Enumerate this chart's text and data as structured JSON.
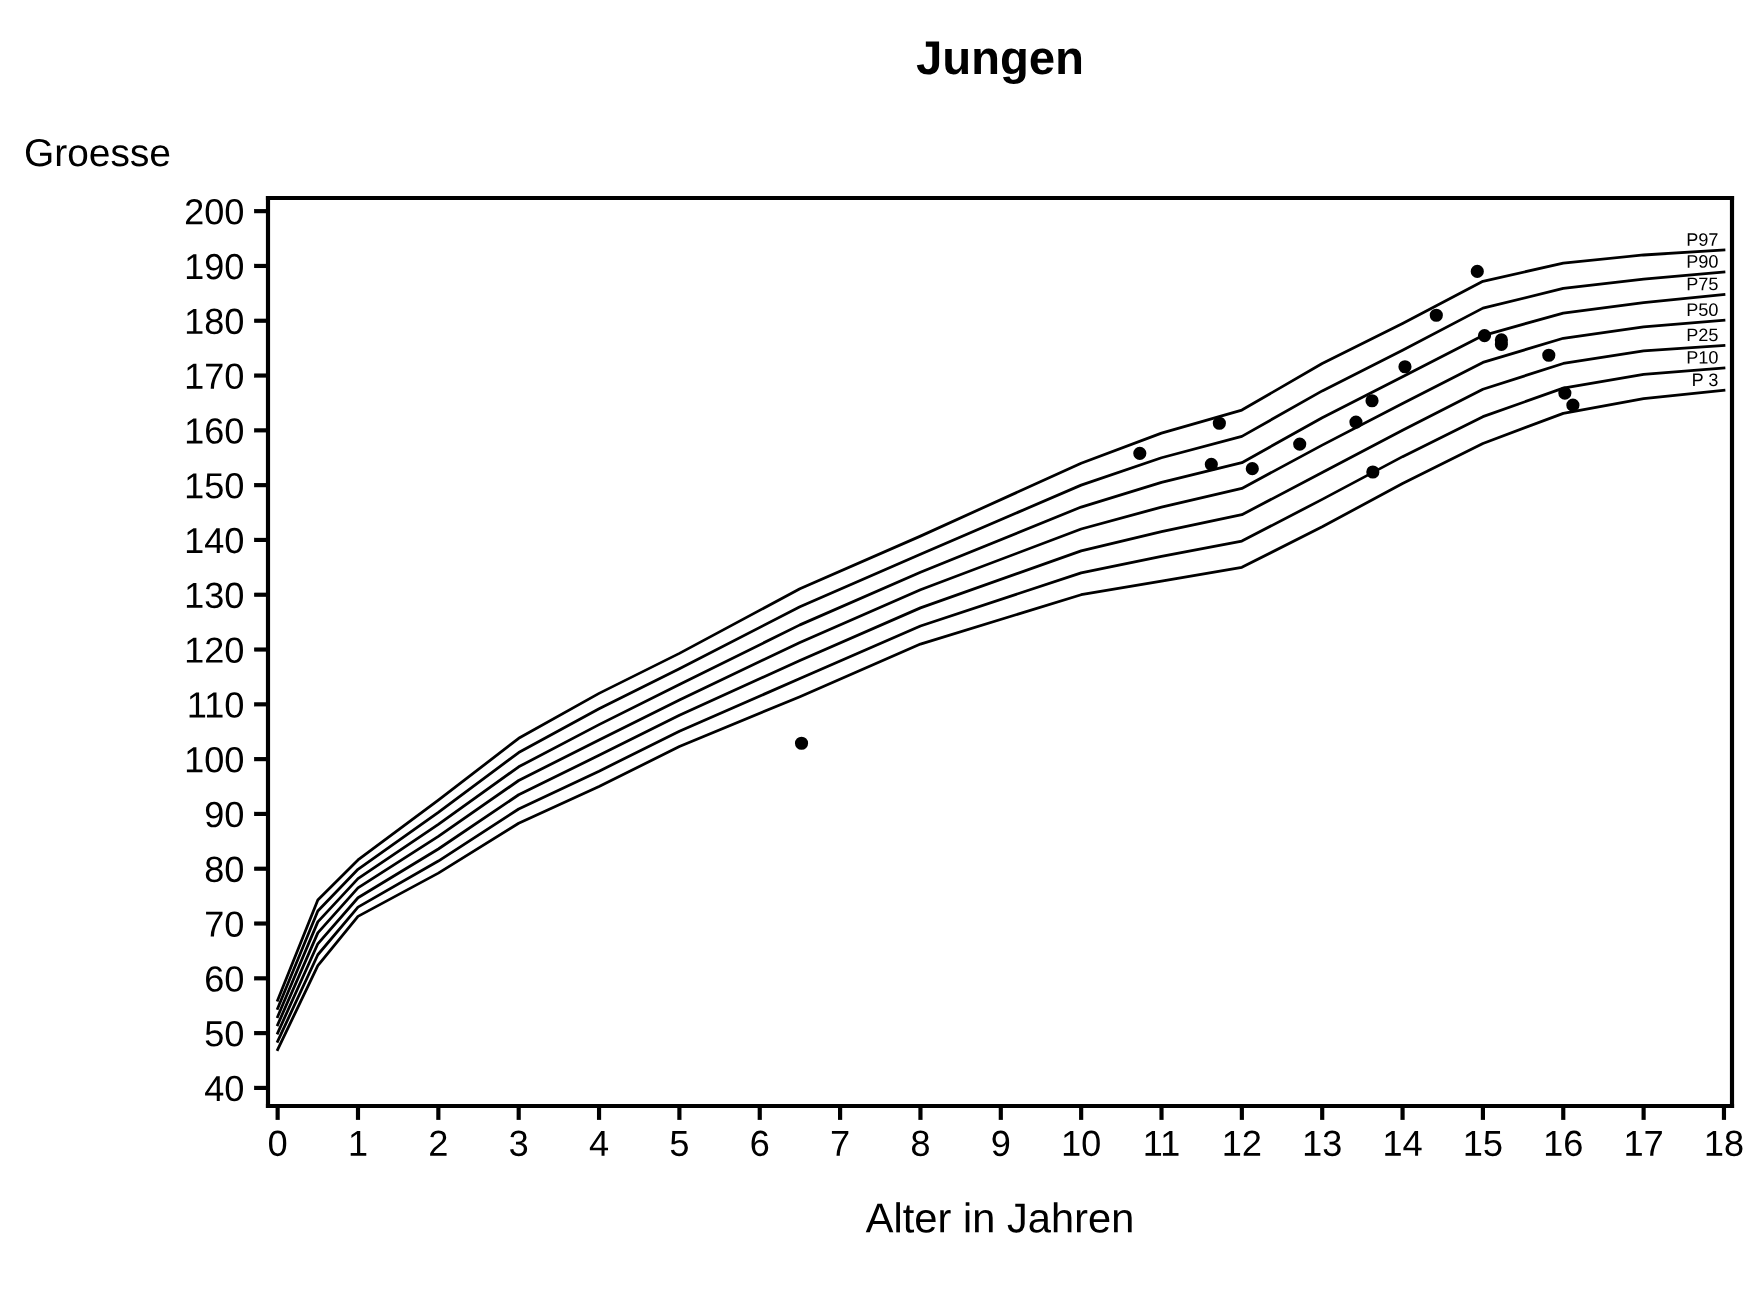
{
  "chart_data": {
    "type": "line",
    "title": "Jungen",
    "xlabel": "Alter in Jahren",
    "ylabel": "Groesse",
    "x": [
      0,
      0.5,
      1,
      2,
      3,
      4,
      5,
      6.5,
      8,
      10,
      11,
      12,
      13,
      14,
      15,
      16,
      17,
      18
    ],
    "xlim": [
      -0.12,
      18.1
    ],
    "ylim": [
      36.7,
      202.4
    ],
    "xticks": [
      0,
      1,
      2,
      3,
      4,
      5,
      6,
      7,
      8,
      9,
      10,
      11,
      12,
      13,
      14,
      15,
      16,
      17,
      18
    ],
    "yticks": [
      40,
      50,
      60,
      70,
      80,
      90,
      100,
      110,
      120,
      130,
      140,
      150,
      160,
      170,
      180,
      190,
      200
    ],
    "grid": false,
    "legend": false,
    "marker": "none",
    "line_style": "solid",
    "series": [
      {
        "name": "P97",
        "color": "#000000",
        "values": [
          56,
          74.3,
          81.6,
          92.5,
          103.8,
          112,
          119.3,
          131.1,
          140.7,
          154,
          159.5,
          163.7,
          172.2,
          179.5,
          187.2,
          190.5,
          192,
          192.9
        ]
      },
      {
        "name": "P90",
        "color": "#000000",
        "values": [
          54.5,
          72.3,
          79.9,
          90.3,
          101.2,
          109.2,
          116.5,
          127.8,
          137.4,
          150,
          155,
          158.9,
          167.2,
          174.6,
          182.3,
          185.9,
          187.6,
          188.9
        ]
      },
      {
        "name": "P75",
        "color": "#000000",
        "values": [
          53,
          70.3,
          78.2,
          88.1,
          98.6,
          106.3,
          113.6,
          124.5,
          134.1,
          146,
          150.5,
          154.1,
          162.3,
          169.8,
          177.3,
          181.4,
          183.3,
          184.8
        ]
      },
      {
        "name": "P50",
        "color": "#000000",
        "values": [
          51.5,
          68.3,
          76.5,
          85.9,
          96.1,
          103.5,
          110.8,
          121.3,
          130.9,
          142,
          146,
          149.4,
          157.3,
          164.9,
          172.4,
          176.8,
          178.9,
          180.1
        ]
      },
      {
        "name": "P25",
        "color": "#000000",
        "values": [
          50,
          66.3,
          74.7,
          83.6,
          93.5,
          100.7,
          108,
          118,
          127.6,
          138,
          141.5,
          144.6,
          152.3,
          160,
          167.5,
          172.2,
          174.5,
          175.5
        ]
      },
      {
        "name": "P10",
        "color": "#000000",
        "values": [
          48.5,
          64.3,
          73,
          81.4,
          90.9,
          97.8,
          105.1,
          114.7,
          124.3,
          134,
          137,
          139.8,
          147.4,
          155.2,
          162.5,
          167.7,
          170.2,
          171.4
        ]
      },
      {
        "name": "P 3",
        "color": "#000000",
        "values": [
          47,
          62.3,
          71.3,
          79.2,
          88.3,
          95,
          102.3,
          111.4,
          121,
          130,
          132.5,
          135,
          142.4,
          150.3,
          157.6,
          163.1,
          165.8,
          167.3
        ]
      },
      {
        "type": "scatter",
        "color": "#000000",
        "marker": "circle",
        "x": [
          6.52,
          10.73,
          11.72,
          11.62,
          12.13,
          12.72,
          13.42,
          13.62,
          13.63,
          14.03,
          14.42,
          14.93,
          15.02,
          15.23,
          15.23,
          15.82,
          16.02,
          16.12
        ],
        "values": [
          102.9,
          155.8,
          161.3,
          153.8,
          153,
          157.5,
          161.5,
          165.4,
          152.4,
          171.6,
          181,
          189,
          177.3,
          176.5,
          175.7,
          173.7,
          166.8,
          164.6
        ]
      }
    ]
  }
}
